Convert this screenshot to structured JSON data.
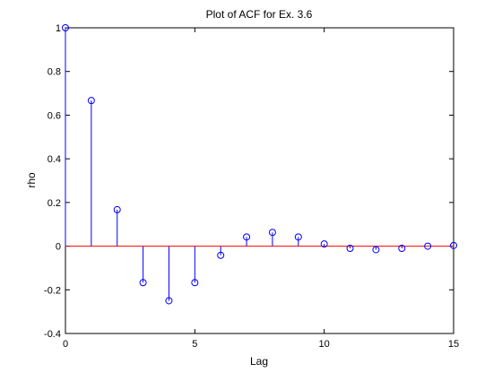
{
  "chart_data": {
    "type": "stem",
    "title": "Plot of ACF for Ex. 3.6",
    "xlabel": "Lag",
    "ylabel": "rho",
    "xlim": [
      0,
      15
    ],
    "ylim": [
      -0.4,
      1
    ],
    "x_ticks": [
      0,
      5,
      10,
      15
    ],
    "y_ticks": [
      -0.4,
      -0.2,
      0,
      0.2,
      0.4,
      0.6,
      0.8,
      1
    ],
    "x_tick_labels": [
      "0",
      "5",
      "10",
      "15"
    ],
    "y_tick_labels": [
      "-0.4",
      "-0.2",
      "0",
      "0.2",
      "0.4",
      "0.6",
      "0.8",
      "1"
    ],
    "grid": false,
    "series": [
      {
        "x": [
          0,
          1,
          2,
          3,
          4,
          5,
          6,
          7,
          8,
          9,
          10,
          11,
          12,
          13,
          14,
          15
        ],
        "y": [
          1.0,
          0.667,
          0.167,
          -0.167,
          -0.25,
          -0.167,
          -0.042,
          0.042,
          0.063,
          0.042,
          0.01,
          -0.01,
          -0.016,
          -0.01,
          0.0,
          0.003
        ],
        "color": "#0000ff",
        "marker": "circle"
      }
    ],
    "baseline": {
      "y": 0,
      "color": "#ff0000"
    }
  }
}
